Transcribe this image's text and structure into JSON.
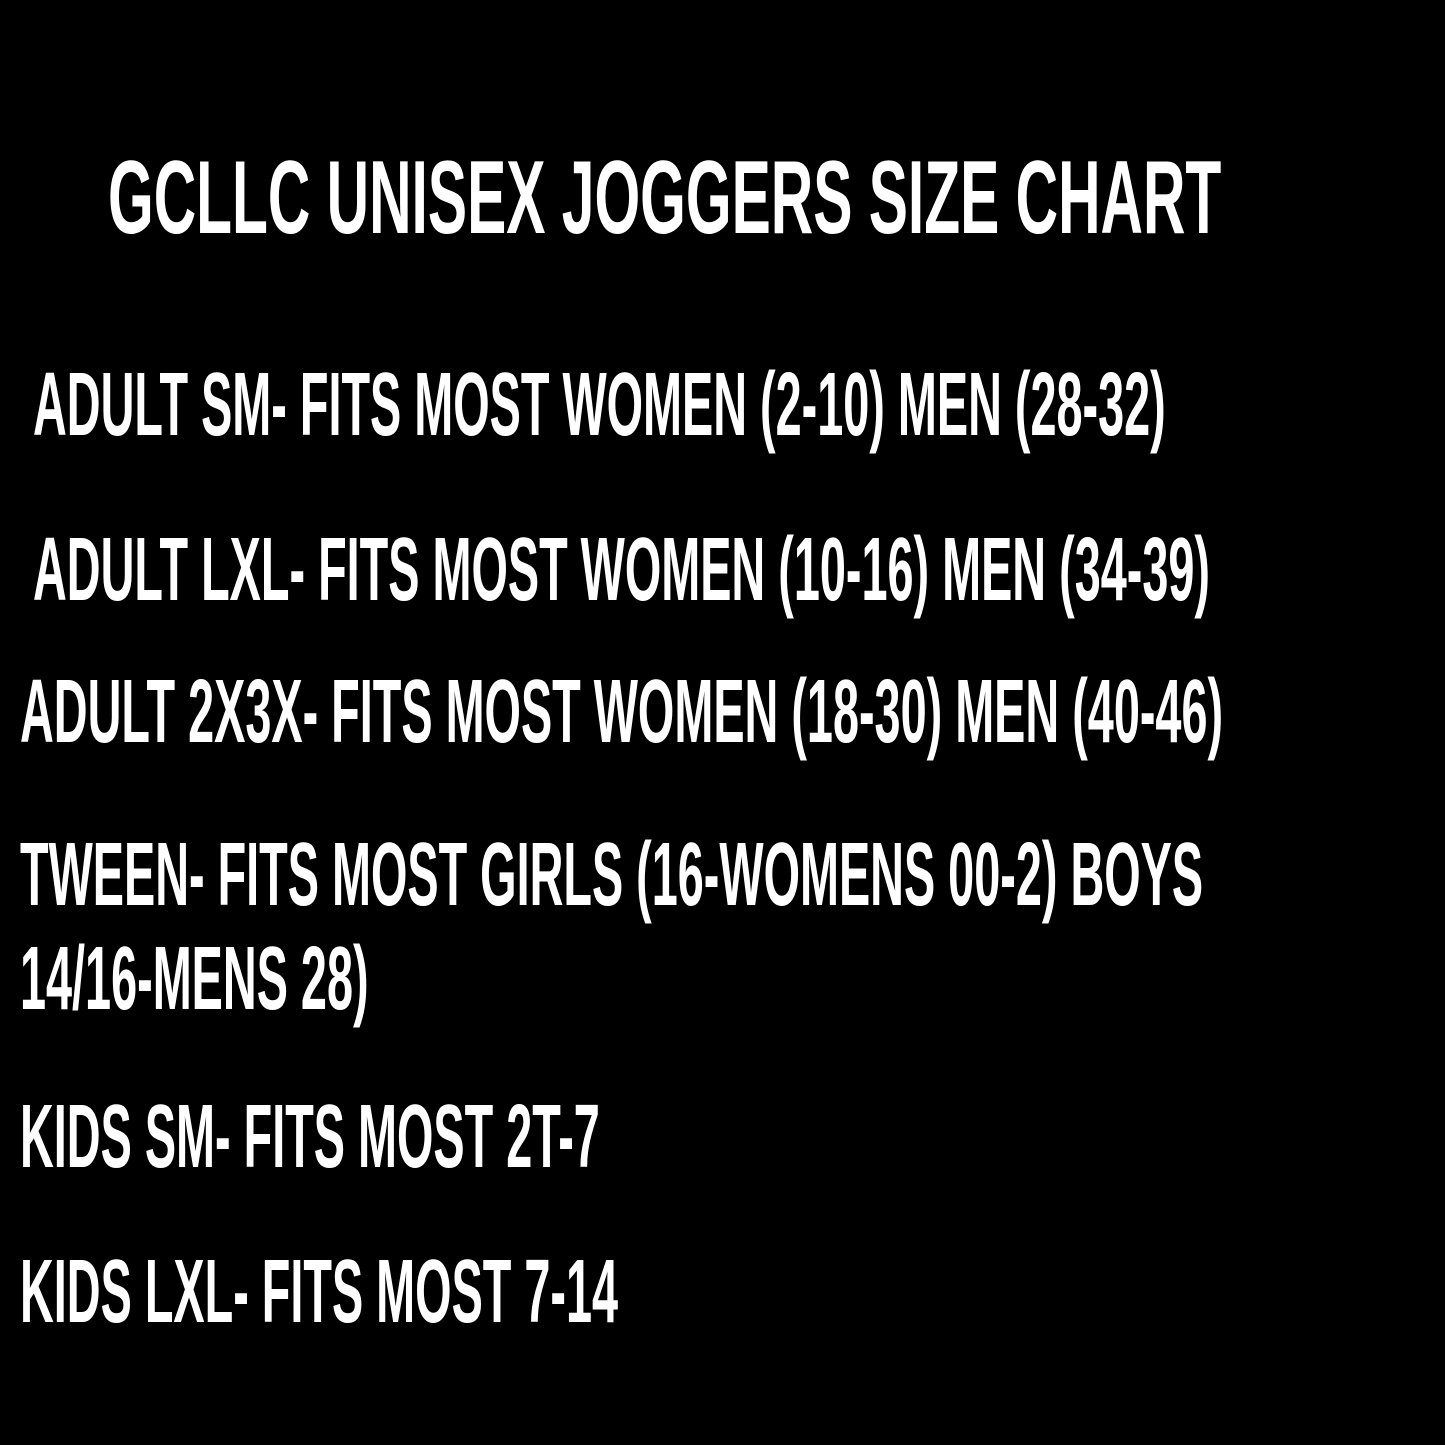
{
  "title": "GCLLC UNISEX JOGGERS SIZE CHART",
  "lines": [
    "ADULT SM- FITS MOST WOMEN (2-10) MEN (28-32)",
    "ADULT LXL- FITS MOST WOMEN (10-16) MEN (34-39)",
    "ADULT 2X3X- FITS MOST WOMEN (18-30) MEN (40-46)",
    "TWEEN- FITS MOST GIRLS (16-WOMENS 00-2) BOYS",
    "14/16-MENS 28)",
    "KIDS SM- FITS MOST 2T-7",
    "KIDS LXL- FITS MOST 7-14"
  ],
  "colors": {
    "background": "#000000",
    "text": "#ffffff"
  }
}
